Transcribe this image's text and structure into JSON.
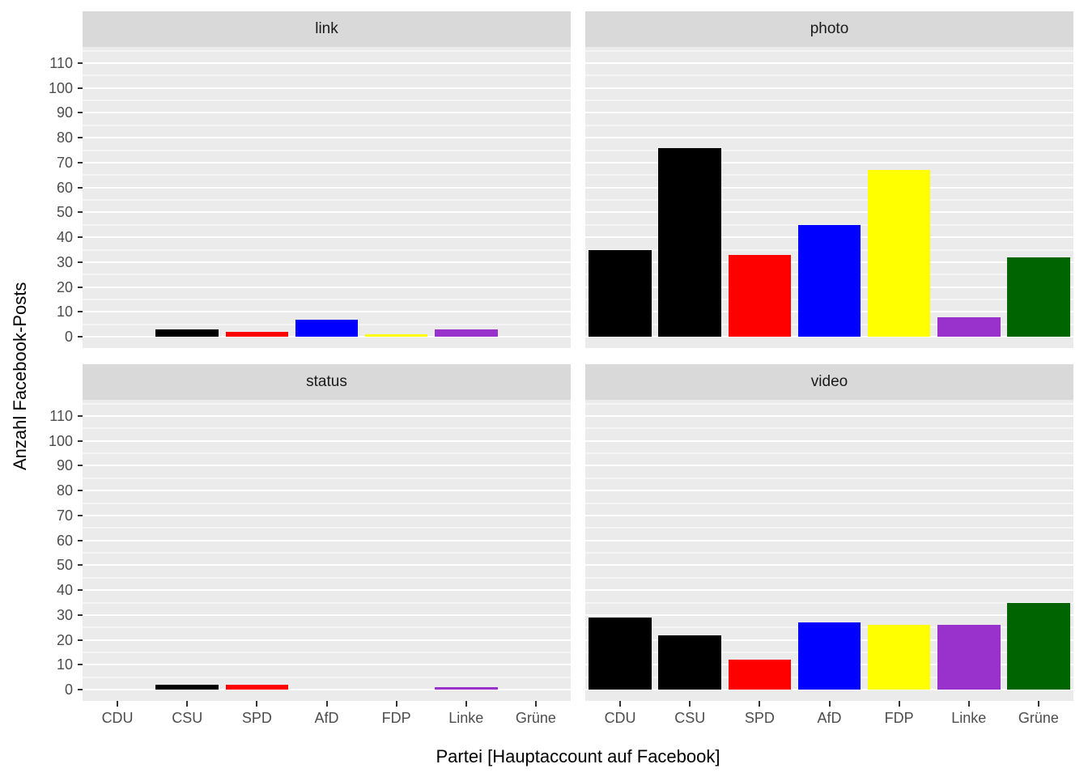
{
  "chart_data": {
    "type": "bar",
    "title": "",
    "xlabel": "Partei [Hauptaccount auf Facebook]",
    "ylabel": "Anzahl Facebook-Posts",
    "categories": [
      "CDU",
      "CSU",
      "SPD",
      "AfD",
      "FDP",
      "Linke",
      "Grüne"
    ],
    "bar_colors": [
      "#000000",
      "#000000",
      "#FF0000",
      "#0000FF",
      "#FFFF00",
      "#9932CC",
      "#006400"
    ],
    "facets": [
      {
        "name": "link",
        "values": [
          0,
          3,
          2,
          7,
          1,
          3,
          0
        ]
      },
      {
        "name": "photo",
        "values": [
          35,
          76,
          33,
          45,
          67,
          8,
          32
        ]
      },
      {
        "name": "status",
        "values": [
          0,
          2,
          2,
          0,
          0,
          1,
          0
        ]
      },
      {
        "name": "video",
        "values": [
          29,
          22,
          12,
          27,
          26,
          26,
          35
        ]
      }
    ],
    "ylim": [
      0,
      110
    ],
    "yticks": [
      0,
      10,
      20,
      30,
      40,
      50,
      60,
      70,
      80,
      90,
      100,
      110
    ],
    "grid": true,
    "legend": false,
    "panel_background": "#EBEBEB",
    "strip_background": "#D9D9D9",
    "gridline_color": "#FFFFFF"
  }
}
